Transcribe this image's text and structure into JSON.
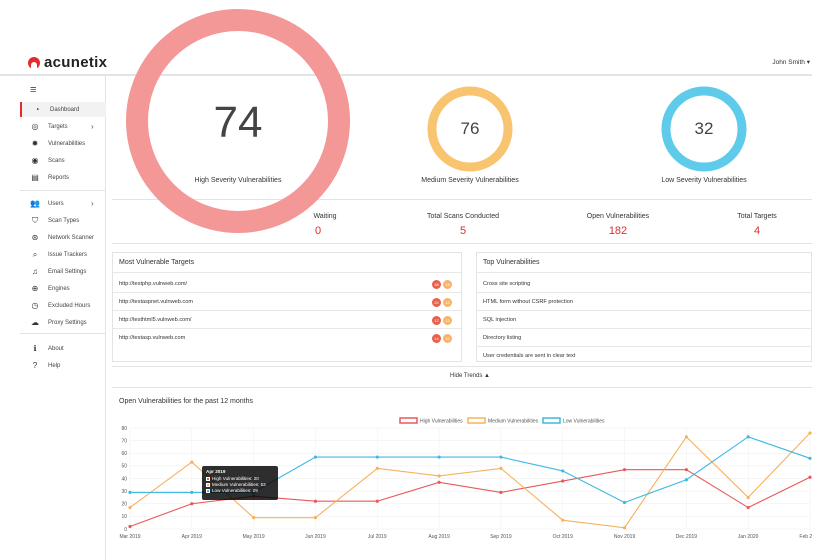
{
  "app": {
    "logo_text": "acunetix",
    "user": "John Smith ▾"
  },
  "sidebar": {
    "items": [
      {
        "label": "Dashboard",
        "icon": "dashboard-icon",
        "glyph": "◔",
        "arrow": ""
      },
      {
        "label": "Targets",
        "icon": "target-icon",
        "glyph": "◎",
        "arrow": "›"
      },
      {
        "label": "Vulnerabilities",
        "icon": "bug-icon",
        "glyph": "✹",
        "arrow": ""
      },
      {
        "label": "Scans",
        "icon": "radar-icon",
        "glyph": "◉",
        "arrow": ""
      },
      {
        "label": "Reports",
        "icon": "report-icon",
        "glyph": "▤",
        "arrow": ""
      },
      {
        "label": "Users",
        "icon": "users-icon",
        "glyph": "👥",
        "arrow": "›"
      },
      {
        "label": "Scan Types",
        "icon": "shield-icon",
        "glyph": "⛉",
        "arrow": ""
      },
      {
        "label": "Network Scanner",
        "icon": "network-icon",
        "glyph": "⊛",
        "arrow": ""
      },
      {
        "label": "Issue Trackers",
        "icon": "search-icon",
        "glyph": "⌕",
        "arrow": ""
      },
      {
        "label": "Email Settings",
        "icon": "bell-icon",
        "glyph": "♫",
        "arrow": ""
      },
      {
        "label": "Engines",
        "icon": "engine-icon",
        "glyph": "⊕",
        "arrow": ""
      },
      {
        "label": "Excluded Hours",
        "icon": "clock-icon",
        "glyph": "◷",
        "arrow": ""
      },
      {
        "label": "Proxy Settings",
        "icon": "cloud-icon",
        "glyph": "☁",
        "arrow": ""
      },
      {
        "label": "About",
        "icon": "info-icon",
        "glyph": "ℹ",
        "arrow": ""
      },
      {
        "label": "Help",
        "icon": "help-icon",
        "glyph": "?",
        "arrow": ""
      }
    ]
  },
  "severity": {
    "high": {
      "value": "74",
      "label": "High Severity Vulnerabilities",
      "color": "#f49797"
    },
    "medium": {
      "value": "76",
      "label": "Medium Severity Vulnerabilities",
      "color": "#f9c46f"
    },
    "low": {
      "value": "32",
      "label": "Low Severity Vulnerabilities",
      "color": "#5fcbeb"
    }
  },
  "stats": [
    {
      "label": "Waiting",
      "value": "0"
    },
    {
      "label": "Total Scans Conducted",
      "value": "5"
    },
    {
      "label": "Open Vulnerabilities",
      "value": "182"
    },
    {
      "label": "Total Targets",
      "value": "4"
    }
  ],
  "targets_panel": {
    "title": "Most Vulnerable Targets",
    "rows": [
      {
        "url": "http://testphp.vulnweb.com/",
        "high": "38",
        "medium": "15"
      },
      {
        "url": "http://testaspnet.vulnweb.com",
        "high": "20",
        "medium": "13"
      },
      {
        "url": "http://testhtml5.vulnweb.com/",
        "high": "12",
        "medium": "13"
      },
      {
        "url": "http://testasp.vulnweb.com",
        "high": "14",
        "medium": "12"
      }
    ]
  },
  "vulns_panel": {
    "title": "Top Vulnerabilities",
    "rows": [
      "Cross site scripting",
      "HTML form without CSRF protection",
      "SQL injection",
      "Directory listing",
      "User credentials are sent in clear text"
    ]
  },
  "hide_trends": "Hide Trends ▲",
  "trend": {
    "title": "Open Vulnerabilities for the past 12 months"
  },
  "tooltip": {
    "title": "Apr 2019",
    "high": "High Vulnerabilities: 20",
    "medium": "Medium Vulnerabilities: 53",
    "low": "Low Vulnerabilities: 29"
  },
  "chart_data": {
    "type": "line",
    "x": [
      "Mar 2019",
      "Apr 2019",
      "May 2019",
      "Jun 2019",
      "Jul 2019",
      "Aug 2019",
      "Sep 2019",
      "Oct 2019",
      "Nov 2019",
      "Dec 2019",
      "Jan 2020",
      "Feb 2020"
    ],
    "series": [
      {
        "name": "High Vulnerabilities",
        "color": "#e8585a",
        "values": [
          2,
          20,
          26,
          22,
          22,
          37,
          29,
          38,
          47,
          47,
          17,
          41
        ]
      },
      {
        "name": "Medium Vulnerabilities",
        "color": "#f5b25d",
        "values": [
          17,
          53,
          9,
          9,
          48,
          42,
          48,
          7,
          1,
          73,
          25,
          76
        ]
      },
      {
        "name": "Low Vulnerabilities",
        "color": "#3fb9e2",
        "values": [
          29,
          29,
          29,
          57,
          57,
          57,
          57,
          46,
          21,
          39,
          73,
          56
        ]
      }
    ],
    "yticks": [
      0,
      10,
      20,
      30,
      40,
      50,
      60,
      70,
      80
    ],
    "ylim": [
      0,
      80
    ],
    "grid": true,
    "legend": "top-center"
  }
}
